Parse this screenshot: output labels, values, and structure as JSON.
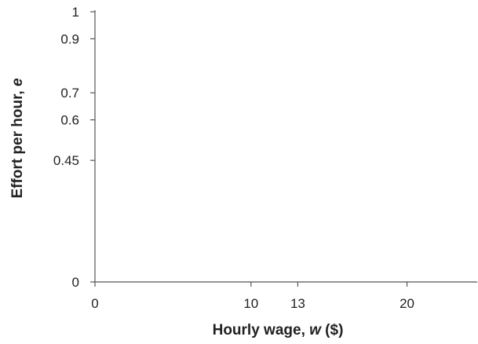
{
  "chart_data": {
    "type": "line",
    "title": "",
    "xlabel": {
      "text": "Hourly wage, ",
      "variable": "w",
      "unit": " ($)"
    },
    "ylabel": {
      "text": "Effort per hour, ",
      "variable": "e"
    },
    "xlim": [
      0,
      24.5
    ],
    "ylim": [
      0,
      1
    ],
    "x_ticks": [
      {
        "value": 0,
        "label": "0"
      },
      {
        "value": 10,
        "label": "10"
      },
      {
        "value": 13,
        "label": "13"
      },
      {
        "value": 20,
        "label": "20"
      }
    ],
    "y_ticks": [
      {
        "value": 0,
        "label": "0"
      },
      {
        "value": 0.45,
        "label": "0.45"
      },
      {
        "value": 0.6,
        "label": "0.6"
      },
      {
        "value": 0.7,
        "label": "0.7"
      },
      {
        "value": 0.9,
        "label": "0.9"
      },
      {
        "value": 1,
        "label": "1"
      }
    ],
    "series": [],
    "grid": false,
    "legend": "none"
  }
}
